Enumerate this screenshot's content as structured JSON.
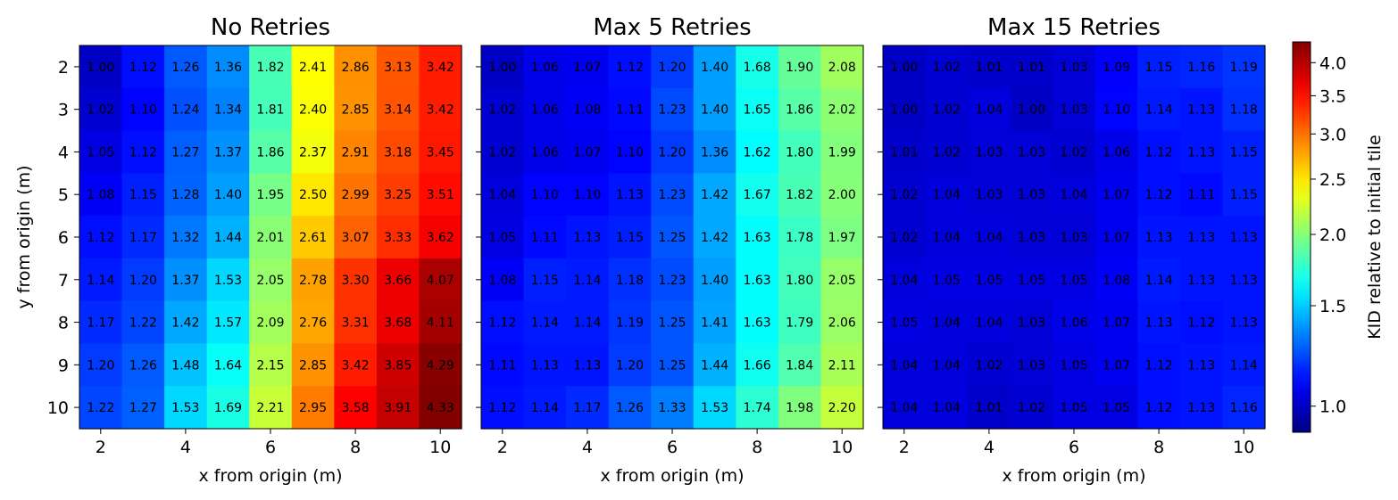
{
  "chart_data": {
    "type": "heatmap",
    "x": [
      2,
      3,
      4,
      5,
      6,
      7,
      8,
      9,
      10
    ],
    "y": [
      2,
      3,
      4,
      5,
      6,
      7,
      8,
      9,
      10
    ],
    "xticks": [
      "2",
      "4",
      "6",
      "8",
      "10"
    ],
    "yticks": [
      "2",
      "3",
      "4",
      "5",
      "6",
      "7",
      "8",
      "9",
      "10"
    ],
    "xlabel": "x from origin (m)",
    "ylabel": "y from origin (m)",
    "colormap": "jet",
    "colorbar": {
      "label": "KID relative to initial tile",
      "scale": "log",
      "range": [
        0.9,
        4.35
      ],
      "ticks": [
        "1.0",
        "1.5",
        "2.0",
        "2.5",
        "3.0",
        "3.5",
        "4.0"
      ],
      "tick_values": [
        1.0,
        1.5,
        2.0,
        2.5,
        3.0,
        3.5,
        4.0
      ]
    },
    "panels": [
      {
        "title": "No Retries",
        "values": [
          [
            "1.00",
            "1.12",
            "1.26",
            "1.36",
            "1.82",
            "2.41",
            "2.86",
            "3.13",
            "3.42"
          ],
          [
            "1.02",
            "1.10",
            "1.24",
            "1.34",
            "1.81",
            "2.40",
            "2.85",
            "3.14",
            "3.42"
          ],
          [
            "1.05",
            "1.12",
            "1.27",
            "1.37",
            "1.86",
            "2.37",
            "2.91",
            "3.18",
            "3.45"
          ],
          [
            "1.08",
            "1.15",
            "1.28",
            "1.40",
            "1.95",
            "2.50",
            "2.99",
            "3.25",
            "3.51"
          ],
          [
            "1.12",
            "1.17",
            "1.32",
            "1.44",
            "2.01",
            "2.61",
            "3.07",
            "3.33",
            "3.62"
          ],
          [
            "1.14",
            "1.20",
            "1.37",
            "1.53",
            "2.05",
            "2.78",
            "3.30",
            "3.66",
            "4.07"
          ],
          [
            "1.17",
            "1.22",
            "1.42",
            "1.57",
            "2.09",
            "2.76",
            "3.31",
            "3.68",
            "4.11"
          ],
          [
            "1.20",
            "1.26",
            "1.48",
            "1.64",
            "2.15",
            "2.85",
            "3.42",
            "3.85",
            "4.29"
          ],
          [
            "1.22",
            "1.27",
            "1.53",
            "1.69",
            "2.21",
            "2.95",
            "3.58",
            "3.91",
            "4.33"
          ]
        ]
      },
      {
        "title": "Max 5 Retries",
        "values": [
          [
            "1.00",
            "1.06",
            "1.07",
            "1.12",
            "1.20",
            "1.40",
            "1.68",
            "1.90",
            "2.08"
          ],
          [
            "1.02",
            "1.06",
            "1.08",
            "1.11",
            "1.23",
            "1.40",
            "1.65",
            "1.86",
            "2.02"
          ],
          [
            "1.02",
            "1.06",
            "1.07",
            "1.10",
            "1.20",
            "1.36",
            "1.62",
            "1.80",
            "1.99"
          ],
          [
            "1.04",
            "1.10",
            "1.10",
            "1.13",
            "1.23",
            "1.42",
            "1.67",
            "1.82",
            "2.00"
          ],
          [
            "1.05",
            "1.11",
            "1.13",
            "1.15",
            "1.25",
            "1.42",
            "1.63",
            "1.78",
            "1.97"
          ],
          [
            "1.08",
            "1.15",
            "1.14",
            "1.18",
            "1.23",
            "1.40",
            "1.63",
            "1.80",
            "2.05"
          ],
          [
            "1.12",
            "1.14",
            "1.14",
            "1.19",
            "1.25",
            "1.41",
            "1.63",
            "1.79",
            "2.06"
          ],
          [
            "1.11",
            "1.13",
            "1.13",
            "1.20",
            "1.25",
            "1.44",
            "1.66",
            "1.84",
            "2.11"
          ],
          [
            "1.12",
            "1.14",
            "1.17",
            "1.26",
            "1.33",
            "1.53",
            "1.74",
            "1.98",
            "2.20"
          ]
        ]
      },
      {
        "title": "Max 15 Retries",
        "values": [
          [
            "1.00",
            "1.02",
            "1.01",
            "1.01",
            "1.03",
            "1.09",
            "1.15",
            "1.16",
            "1.19"
          ],
          [
            "1.00",
            "1.02",
            "1.04",
            "1.00",
            "1.03",
            "1.10",
            "1.14",
            "1.13",
            "1.18"
          ],
          [
            "1.01",
            "1.02",
            "1.03",
            "1.03",
            "1.02",
            "1.06",
            "1.12",
            "1.13",
            "1.15"
          ],
          [
            "1.02",
            "1.04",
            "1.03",
            "1.03",
            "1.04",
            "1.07",
            "1.12",
            "1.11",
            "1.15"
          ],
          [
            "1.02",
            "1.04",
            "1.04",
            "1.03",
            "1.03",
            "1.07",
            "1.13",
            "1.13",
            "1.13"
          ],
          [
            "1.04",
            "1.05",
            "1.05",
            "1.05",
            "1.05",
            "1.08",
            "1.14",
            "1.13",
            "1.13"
          ],
          [
            "1.05",
            "1.04",
            "1.04",
            "1.03",
            "1.06",
            "1.07",
            "1.13",
            "1.12",
            "1.13"
          ],
          [
            "1.04",
            "1.04",
            "1.02",
            "1.03",
            "1.05",
            "1.07",
            "1.12",
            "1.13",
            "1.14"
          ],
          [
            "1.04",
            "1.04",
            "1.01",
            "1.02",
            "1.05",
            "1.05",
            "1.12",
            "1.13",
            "1.16"
          ]
        ]
      }
    ]
  }
}
